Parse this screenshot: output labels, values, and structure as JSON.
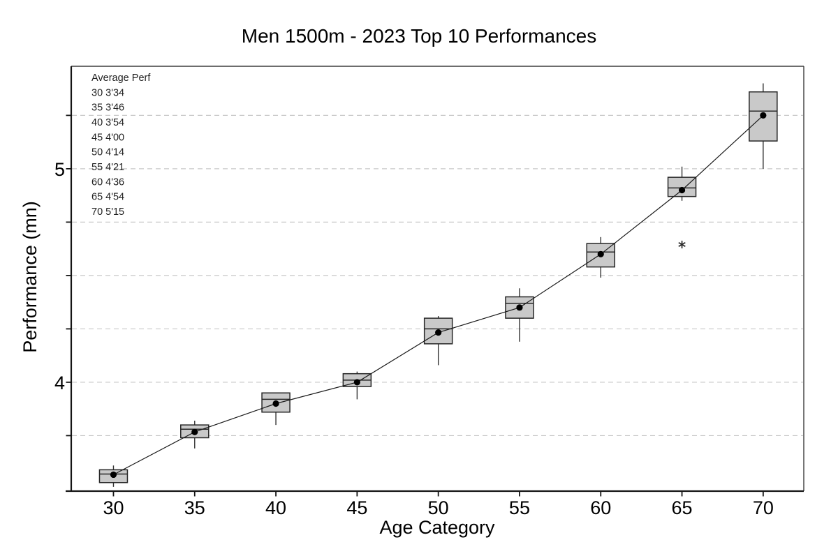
{
  "title": "Men 1500m - 2023 Top 10 Performances",
  "chart_data": {
    "type": "box",
    "title": "Men 1500m - 2023 Top 10 Performances",
    "xlabel": "Age Category",
    "ylabel": "Performance (mn)",
    "grid": "dashed horizontal minor lines every 0.25",
    "legend_position": "none",
    "x_range": [
      27.4,
      72.5
    ],
    "ylim": [
      3.49,
      5.48
    ],
    "y_axis": {
      "minor_ticks": [
        3.75,
        4.0,
        4.25,
        4.5,
        4.75,
        5.0,
        5.25
      ],
      "labeled_ticks": [
        {
          "value": 4,
          "label": "4"
        },
        {
          "value": 5,
          "label": "5"
        }
      ]
    },
    "categories": [
      30,
      35,
      40,
      45,
      50,
      55,
      60,
      65,
      70
    ],
    "x_tick_labels": [
      "30",
      "35",
      "40",
      "45",
      "50",
      "55",
      "60",
      "65",
      "70"
    ],
    "series": [
      {
        "age": 30,
        "whisker_low": 3.51,
        "q1": 3.53,
        "median": 3.57,
        "q3": 3.59,
        "whisker_high": 3.61,
        "mean": 3.567,
        "mean_label": "3'34",
        "outliers": []
      },
      {
        "age": 35,
        "whisker_low": 3.69,
        "q1": 3.74,
        "median": 3.78,
        "q3": 3.8,
        "whisker_high": 3.82,
        "mean": 3.767,
        "mean_label": "3'46",
        "outliers": []
      },
      {
        "age": 40,
        "whisker_low": 3.8,
        "q1": 3.86,
        "median": 3.92,
        "q3": 3.95,
        "whisker_high": 3.95,
        "mean": 3.9,
        "mean_label": "3'54",
        "outliers": []
      },
      {
        "age": 45,
        "whisker_low": 3.92,
        "q1": 3.98,
        "median": 4.01,
        "q3": 4.04,
        "whisker_high": 4.05,
        "mean": 4.0,
        "mean_label": "4'00",
        "outliers": []
      },
      {
        "age": 50,
        "whisker_low": 4.08,
        "q1": 4.18,
        "median": 4.25,
        "q3": 4.3,
        "whisker_high": 4.31,
        "mean": 4.233,
        "mean_label": "4'14",
        "outliers": []
      },
      {
        "age": 55,
        "whisker_low": 4.19,
        "q1": 4.3,
        "median": 4.37,
        "q3": 4.4,
        "whisker_high": 4.44,
        "mean": 4.35,
        "mean_label": "4'21",
        "outliers": []
      },
      {
        "age": 60,
        "whisker_low": 4.49,
        "q1": 4.54,
        "median": 4.61,
        "q3": 4.65,
        "whisker_high": 4.68,
        "mean": 4.6,
        "mean_label": "4'36",
        "outliers": []
      },
      {
        "age": 65,
        "whisker_low": 4.85,
        "q1": 4.87,
        "median": 4.91,
        "q3": 4.96,
        "whisker_high": 5.01,
        "mean": 4.9,
        "mean_label": "4'54",
        "outliers": [
          4.645
        ]
      },
      {
        "age": 70,
        "whisker_low": 5.0,
        "q1": 5.13,
        "median": 5.27,
        "q3": 5.36,
        "whisker_high": 5.4,
        "mean": 5.25,
        "mean_label": "5'15",
        "outliers": []
      }
    ],
    "annotation": {
      "heading": "Average Perf",
      "lines": [
        "Average Perf",
        "30 3'34",
        "35 3'46",
        "40 3'54",
        "45 4'00",
        "50 4'14",
        "55 4'21",
        "60 4'36",
        "65 4'54",
        "70 5'15"
      ]
    },
    "colors": {
      "box_fill": "#c9c9c9",
      "box_border": "#262626",
      "median_line": "#262626",
      "whisker": "#333333",
      "mean_dot": "#000000",
      "mean_line": "#1a1a1a",
      "outlier": "#2b2b2b",
      "gridline": "#c7c7c7",
      "frame": "#3d3d3d",
      "axis": "#141414",
      "text": "#000000",
      "annotation_text": "#1f1f1f"
    }
  }
}
